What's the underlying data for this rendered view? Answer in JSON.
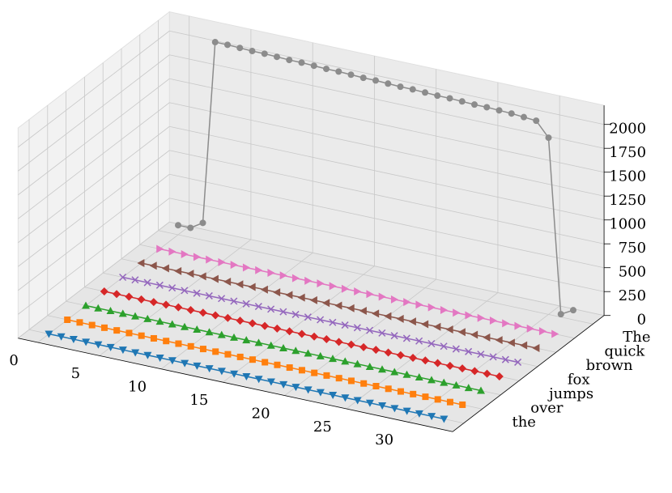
{
  "chart_data": {
    "type": "line3d",
    "x": [
      0,
      1,
      2,
      3,
      4,
      5,
      6,
      7,
      8,
      9,
      10,
      11,
      12,
      13,
      14,
      15,
      16,
      17,
      18,
      19,
      20,
      21,
      22,
      23,
      24,
      25,
      26,
      27,
      28,
      29,
      30,
      31,
      32
    ],
    "categories": [
      "The",
      "quick",
      "brown",
      "fox",
      "jumps",
      "over",
      "the",
      null
    ],
    "xlim": [
      -1.6,
      33.6
    ],
    "xticks": [
      0,
      5,
      10,
      15,
      20,
      25,
      30
    ],
    "zlim": [
      0,
      2200
    ],
    "zticks": [
      0,
      250,
      500,
      750,
      1000,
      1250,
      1500,
      1750,
      2000
    ],
    "grid": true,
    "series": [
      {
        "color": "#8c8c8c",
        "marker": "circle",
        "values": [
          100,
          100,
          180,
          2100,
          2100,
          2095,
          2090,
          2090,
          2085,
          2080,
          2080,
          2075,
          2070,
          2070,
          2065,
          2060,
          2060,
          2055,
          2050,
          2050,
          2045,
          2040,
          2040,
          2035,
          2030,
          2030,
          2025,
          2020,
          2010,
          2000,
          1850,
          30,
          100
        ]
      },
      {
        "color": "#e377c2",
        "marker": "triangle-right",
        "values": [
          0,
          0,
          0,
          0,
          0,
          0,
          0,
          0,
          0,
          0,
          0,
          0,
          0,
          0,
          0,
          0,
          0,
          0,
          0,
          0,
          0,
          0,
          0,
          0,
          0,
          0,
          0,
          0,
          0,
          0,
          0,
          0,
          0
        ]
      },
      {
        "color": "#8c564b",
        "marker": "triangle-left",
        "values": [
          0,
          0,
          0,
          0,
          0,
          0,
          0,
          0,
          0,
          0,
          0,
          0,
          0,
          0,
          0,
          0,
          0,
          0,
          0,
          0,
          0,
          0,
          0,
          0,
          0,
          0,
          0,
          0,
          0,
          0,
          0,
          0,
          0
        ]
      },
      {
        "color": "#9467bd",
        "marker": "x",
        "values": [
          0,
          0,
          0,
          0,
          0,
          0,
          0,
          0,
          0,
          0,
          0,
          0,
          0,
          0,
          0,
          0,
          0,
          0,
          0,
          0,
          0,
          0,
          0,
          0,
          0,
          0,
          0,
          0,
          0,
          0,
          0,
          0,
          0
        ]
      },
      {
        "color": "#d62728",
        "marker": "diamond",
        "values": [
          0,
          0,
          0,
          0,
          0,
          0,
          0,
          0,
          0,
          0,
          0,
          0,
          0,
          0,
          0,
          0,
          0,
          0,
          0,
          0,
          0,
          0,
          0,
          0,
          0,
          0,
          0,
          0,
          0,
          0,
          0,
          0,
          0
        ]
      },
      {
        "color": "#2ca02c",
        "marker": "triangle-up",
        "values": [
          0,
          0,
          0,
          0,
          0,
          0,
          0,
          0,
          0,
          0,
          0,
          0,
          0,
          0,
          0,
          0,
          0,
          0,
          0,
          0,
          0,
          0,
          0,
          0,
          0,
          0,
          0,
          0,
          0,
          0,
          0,
          0,
          0
        ]
      },
      {
        "color": "#ff7f0e",
        "marker": "square",
        "values": [
          0,
          0,
          0,
          0,
          0,
          0,
          0,
          0,
          0,
          0,
          0,
          0,
          0,
          0,
          0,
          0,
          0,
          0,
          0,
          0,
          0,
          0,
          0,
          0,
          0,
          0,
          0,
          0,
          0,
          0,
          0,
          0,
          0
        ]
      },
      {
        "color": "#1f77b4",
        "marker": "triangle-down",
        "values": [
          0,
          0,
          0,
          0,
          0,
          0,
          0,
          0,
          0,
          0,
          0,
          0,
          0,
          0,
          0,
          0,
          0,
          0,
          0,
          0,
          0,
          0,
          0,
          0,
          0,
          0,
          0,
          0,
          0,
          0,
          0,
          0,
          0
        ]
      }
    ]
  }
}
